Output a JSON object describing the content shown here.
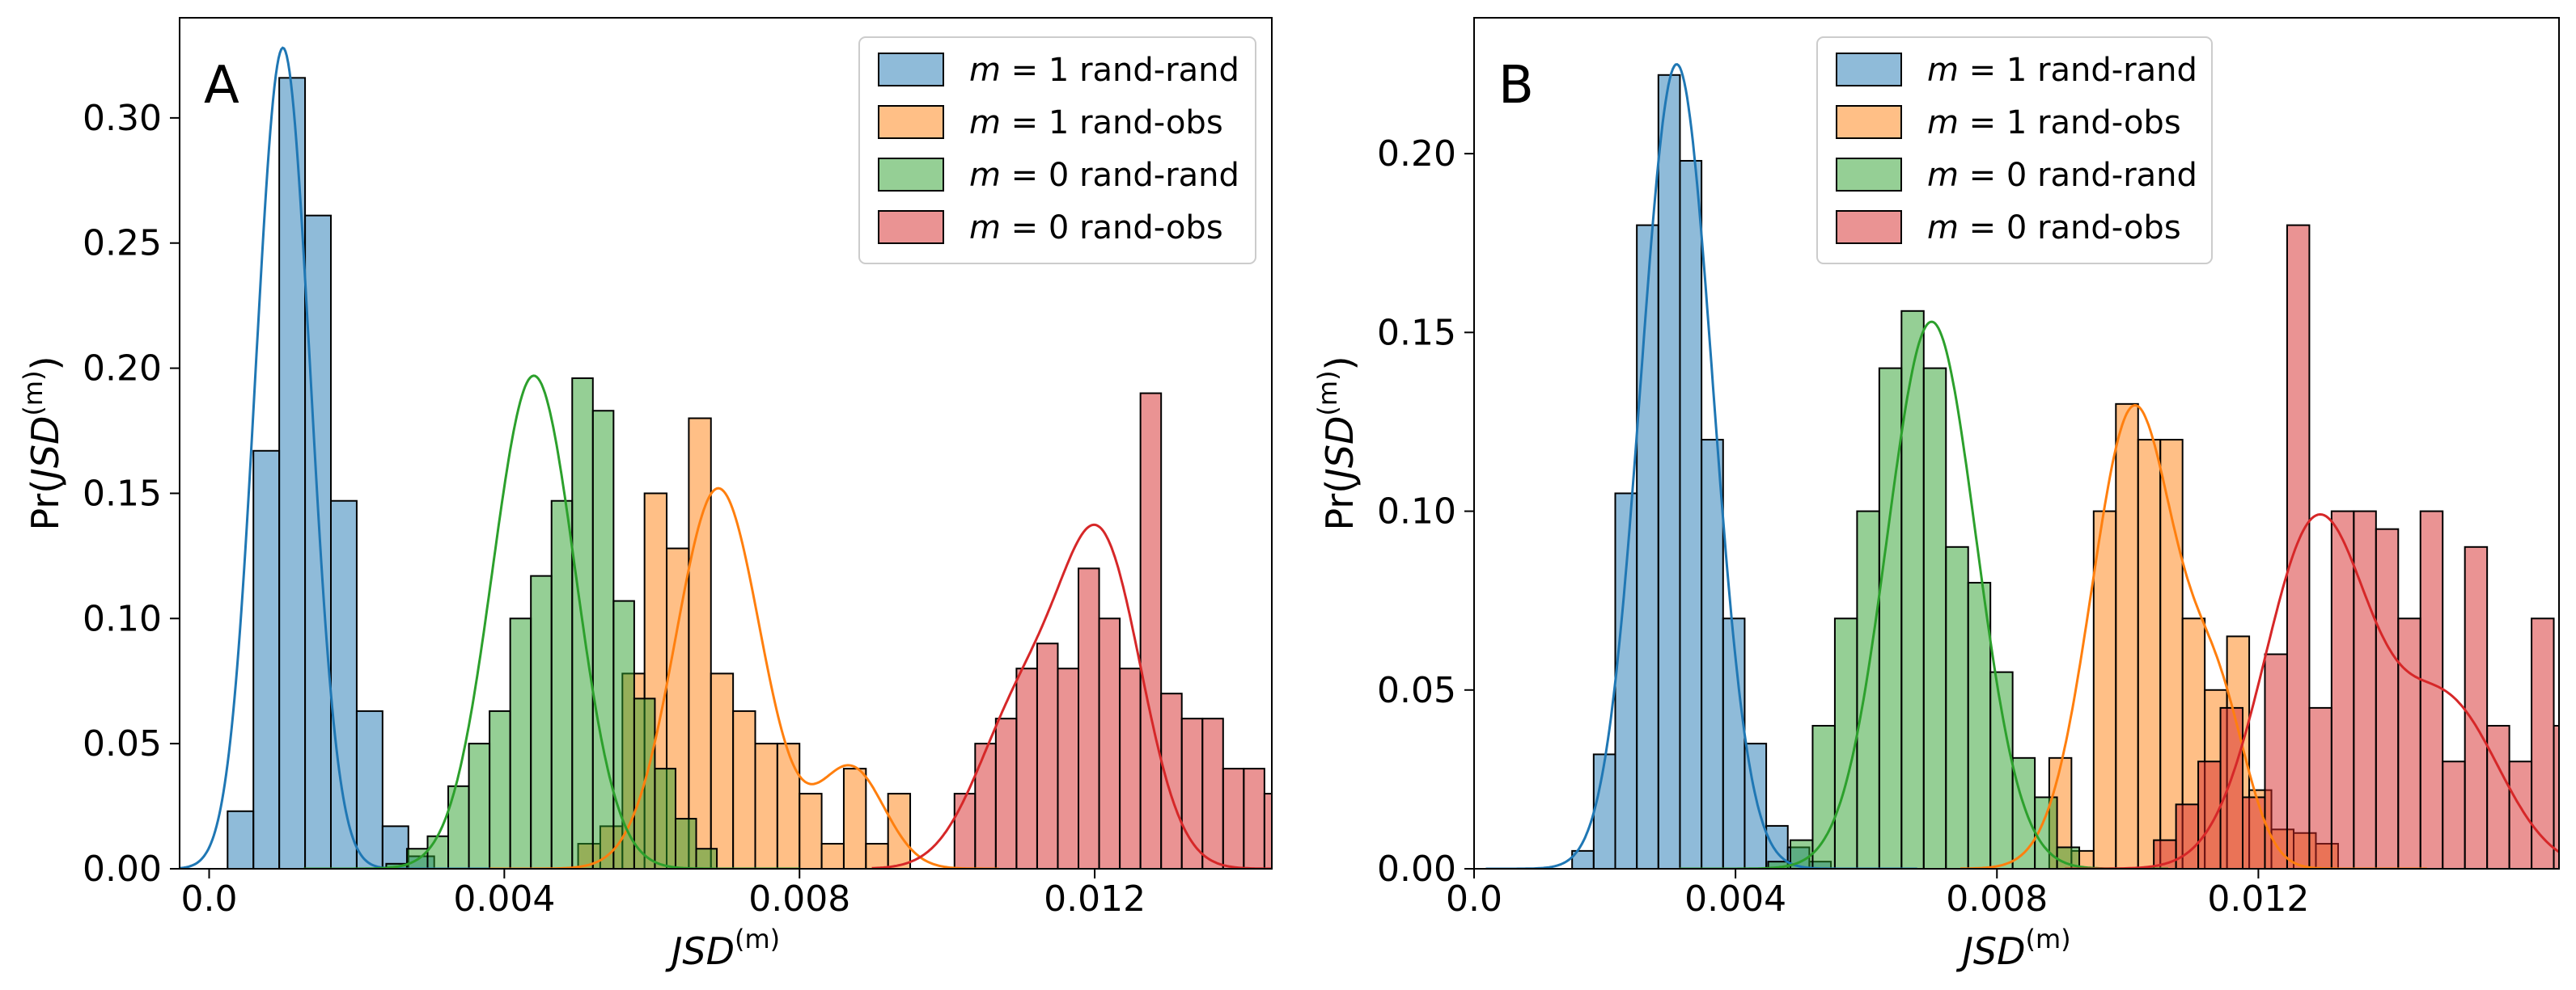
{
  "chart_data": [
    {
      "type": "histogram",
      "panel_label": "A",
      "xlabel": {
        "base": "JSD",
        "sup": "(m)"
      },
      "ylabel": {
        "prefix": "Pr(",
        "base": "JSD",
        "sup": "(m)",
        "suffix": ")"
      },
      "xlim": [
        -0.0004,
        0.0144
      ],
      "ylim": [
        0,
        0.34
      ],
      "xticks": [
        0.0,
        0.004,
        0.008,
        0.012
      ],
      "xtick_labels": [
        "0.0",
        "0.004",
        "0.008",
        "0.012"
      ],
      "yticks": [
        0.0,
        0.05,
        0.1,
        0.15,
        0.2,
        0.25,
        0.3
      ],
      "ytick_labels": [
        "0.00",
        "0.05",
        "0.10",
        "0.15",
        "0.20",
        "0.25",
        "0.30"
      ],
      "grid": false,
      "legend_position": "top-right",
      "series": [
        {
          "name": "m = 1 rand-rand",
          "legend_var": "m",
          "legend_val": "1",
          "legend_text": "rand-rand",
          "color": "#1f77b4",
          "bin_start": 0.00025,
          "bin_width": 0.00035,
          "values": [
            0.023,
            0.167,
            0.316,
            0.261,
            0.147,
            0.063,
            0.017,
            0.005
          ],
          "kde": {
            "mu": 0.001,
            "sigma": 0.00037,
            "peak": 0.328
          }
        },
        {
          "name": "m = 1 rand-obs",
          "legend_var": "m",
          "legend_val": "1",
          "legend_text": "rand-obs",
          "color": "#ff7f0e",
          "bin_start": 0.005,
          "bin_width": 0.0003,
          "values": [
            0.01,
            0.017,
            0.078,
            0.15,
            0.128,
            0.18,
            0.078,
            0.063,
            0.05,
            0.05,
            0.03,
            0.01,
            0.04,
            0.01,
            0.03
          ],
          "kde": {
            "mu": 0.0069,
            "sigma": 0.00058,
            "peak": 0.152,
            "mu2": 0.0087,
            "sigma2": 0.00045,
            "peak2": 0.04
          }
        },
        {
          "name": "m = 0 rand-rand",
          "legend_var": "m",
          "legend_val": "0",
          "legend_text": "rand-rand",
          "color": "#2ca02c",
          "bin_start": 0.0024,
          "bin_width": 0.00028,
          "values": [
            0.002,
            0.008,
            0.013,
            0.033,
            0.05,
            0.063,
            0.1,
            0.117,
            0.147,
            0.196,
            0.183,
            0.107,
            0.068,
            0.04,
            0.02,
            0.008
          ],
          "kde": {
            "mu": 0.0044,
            "sigma": 0.00056,
            "peak": 0.197
          }
        },
        {
          "name": "m = 0 rand-obs",
          "legend_var": "m",
          "legend_val": "0",
          "legend_text": "rand-obs",
          "color": "#d62728",
          "bin_start": 0.0101,
          "bin_width": 0.00028,
          "values": [
            0.03,
            0.05,
            0.06,
            0.08,
            0.09,
            0.08,
            0.12,
            0.1,
            0.08,
            0.19,
            0.07,
            0.06,
            0.06,
            0.04,
            0.04,
            0.03
          ],
          "kde": {
            "mu": 0.0121,
            "sigma": 0.00055,
            "peak": 0.124,
            "mu2": 0.011,
            "sigma2": 0.0006,
            "peak2": 0.062
          }
        }
      ]
    },
    {
      "type": "histogram",
      "panel_label": "B",
      "xlabel": {
        "base": "JSD",
        "sup": "(m)"
      },
      "ylabel": {
        "prefix": "Pr(",
        "base": "JSD",
        "sup": "(m)",
        "suffix": ")"
      },
      "xlim": [
        0.0,
        0.0166
      ],
      "ylim": [
        0,
        0.238
      ],
      "xticks": [
        0.0,
        0.004,
        0.008,
        0.012
      ],
      "xtick_labels": [
        "0.0",
        "0.004",
        "0.008",
        "0.012"
      ],
      "yticks": [
        0.0,
        0.05,
        0.1,
        0.15,
        0.2
      ],
      "ytick_labels": [
        "0.00",
        "0.05",
        "0.10",
        "0.15",
        "0.20"
      ],
      "grid": false,
      "legend_position": "top-center",
      "series": [
        {
          "name": "m = 1 rand-rand",
          "legend_var": "m",
          "legend_val": "1",
          "legend_text": "rand-rand",
          "color": "#1f77b4",
          "bin_start": 0.0015,
          "bin_width": 0.00033,
          "values": [
            0.005,
            0.032,
            0.105,
            0.18,
            0.222,
            0.198,
            0.12,
            0.07,
            0.035,
            0.012,
            0.006,
            0.002
          ],
          "kde": {
            "mu": 0.0031,
            "sigma": 0.00055,
            "peak": 0.225
          }
        },
        {
          "name": "m = 1 rand-obs",
          "legend_var": "m",
          "legend_val": "1",
          "legend_text": "rand-obs",
          "color": "#ff7f0e",
          "bin_start": 0.0088,
          "bin_width": 0.00034,
          "values": [
            0.031,
            0.005,
            0.1,
            0.13,
            0.12,
            0.12,
            0.07,
            0.05,
            0.065,
            0.022,
            0.011,
            0.01,
            0.007
          ],
          "kde": {
            "mu": 0.0101,
            "sigma": 0.00065,
            "peak": 0.129,
            "mu2": 0.0114,
            "sigma2": 0.00045,
            "peak2": 0.04
          }
        },
        {
          "name": "m = 0 rand-rand",
          "legend_var": "m",
          "legend_val": "0",
          "legend_text": "rand-rand",
          "color": "#2ca02c",
          "bin_start": 0.0045,
          "bin_width": 0.00034,
          "values": [
            0.002,
            0.008,
            0.04,
            0.07,
            0.1,
            0.14,
            0.156,
            0.14,
            0.09,
            0.08,
            0.055,
            0.031,
            0.02,
            0.006
          ],
          "kde": {
            "mu": 0.007,
            "sigma": 0.00068,
            "peak": 0.153
          }
        },
        {
          "name": "m = 0 rand-obs",
          "legend_var": "m",
          "legend_val": "0",
          "legend_text": "rand-obs",
          "color": "#d62728",
          "bin_start": 0.0104,
          "bin_width": 0.00034,
          "values": [
            0.008,
            0.018,
            0.03,
            0.045,
            0.02,
            0.06,
            0.18,
            0.045,
            0.1,
            0.1,
            0.095,
            0.07,
            0.1,
            0.03,
            0.09,
            0.04,
            0.03,
            0.07,
            0.04,
            0.03
          ],
          "kde": {
            "mu": 0.0129,
            "sigma": 0.0008,
            "peak": 0.097,
            "mu2": 0.0149,
            "sigma2": 0.0008,
            "peak2": 0.045
          }
        }
      ]
    }
  ]
}
